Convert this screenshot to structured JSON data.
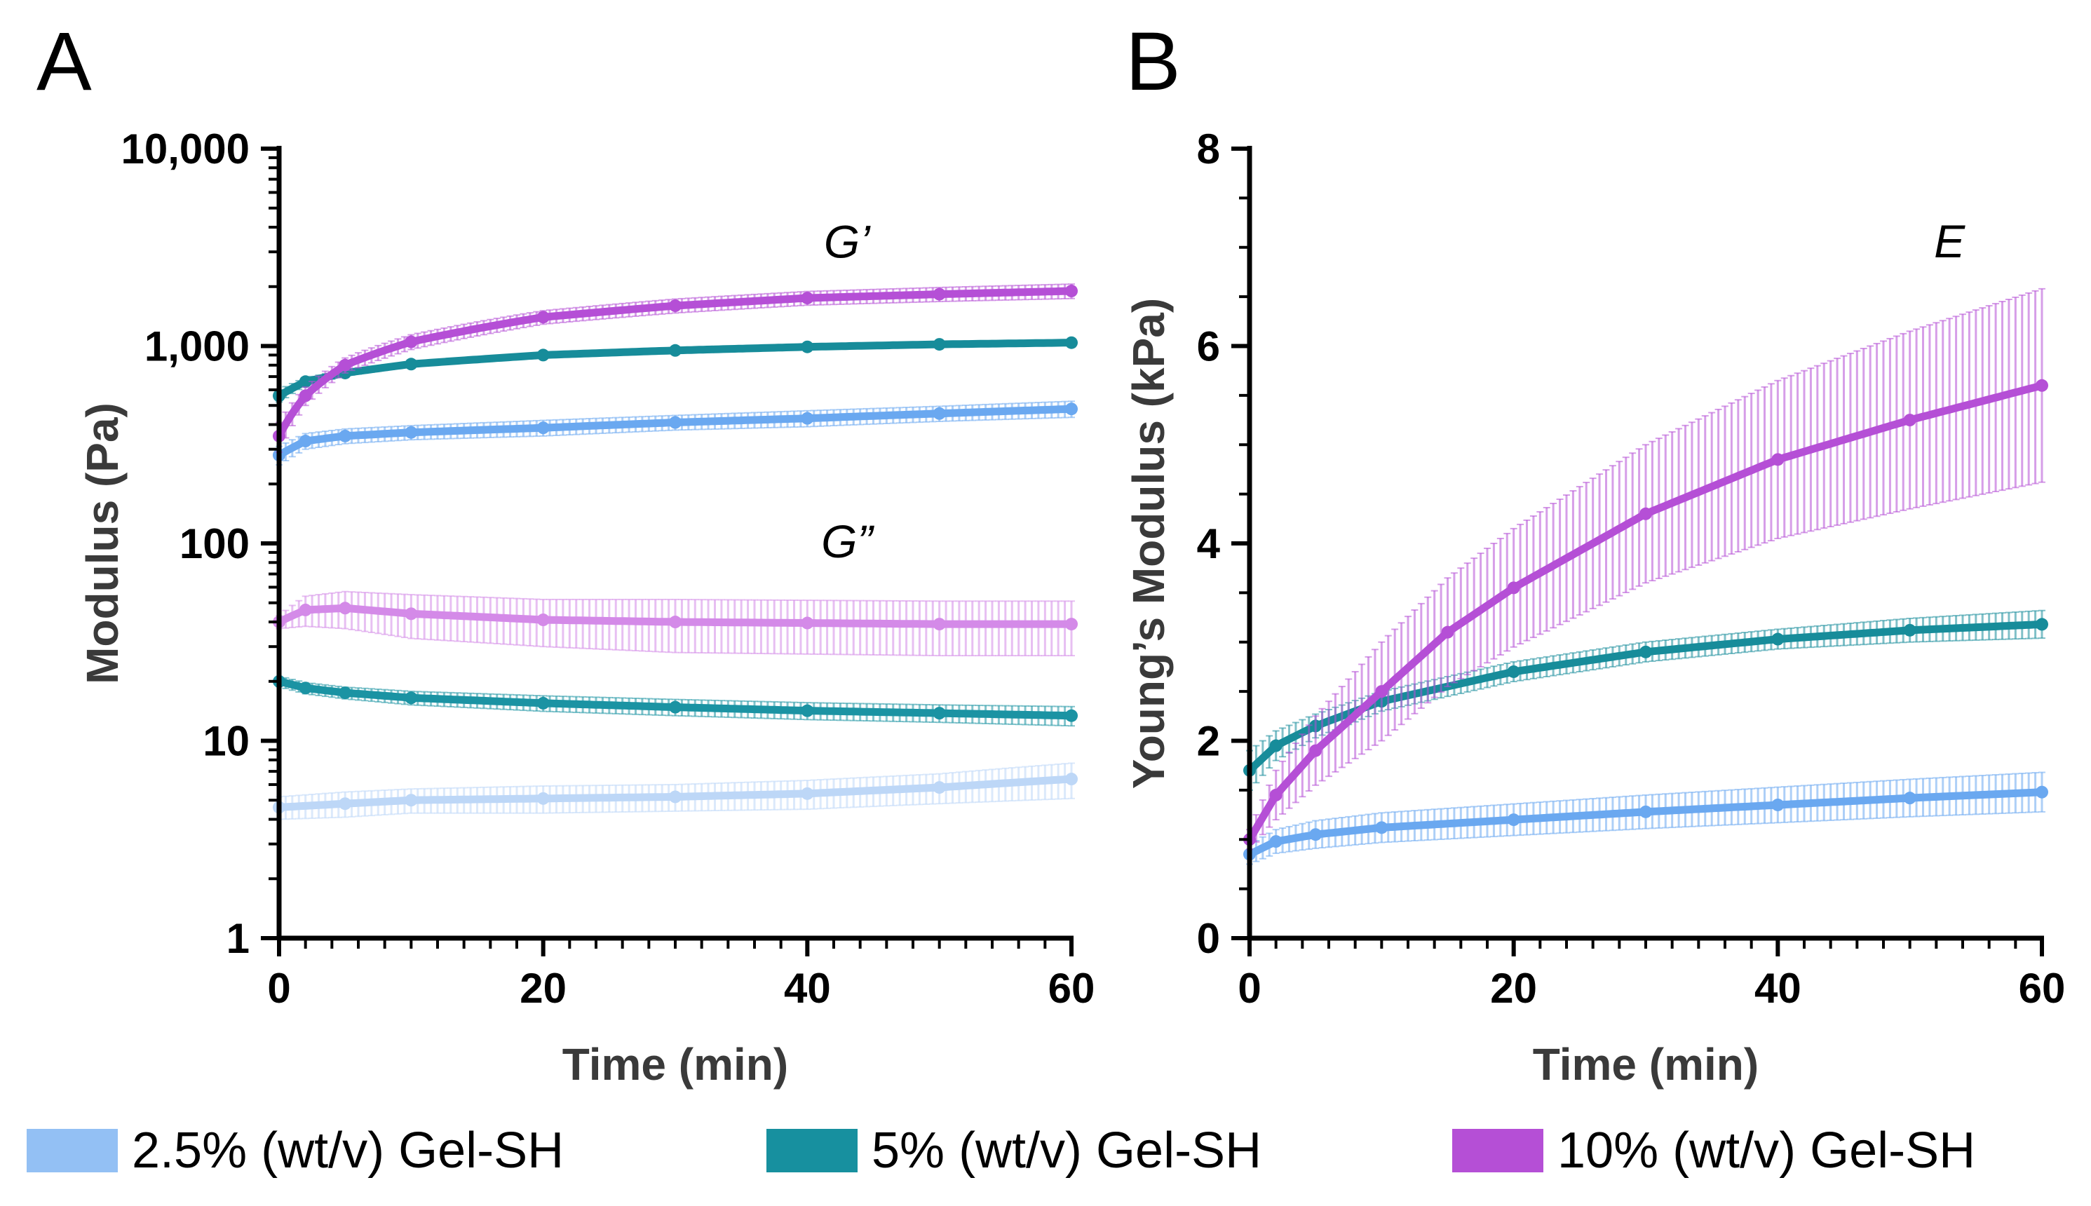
{
  "chart_data": [
    {
      "panel": "A",
      "type": "line",
      "ylabel": "Modulus (Pa)",
      "xlabel": "Time (min)",
      "yscale": "log",
      "xlim": [
        0,
        60
      ],
      "ylim": [
        1,
        10000
      ],
      "xticks": [
        0,
        20,
        40,
        60
      ],
      "xtick_labels": [
        "0",
        "20",
        "40",
        "60"
      ],
      "yticks": [
        1,
        10,
        100,
        1000,
        10000
      ],
      "ytick_labels": [
        "1",
        "10",
        "100",
        "1,000",
        "10,000"
      ],
      "annotations": [
        {
          "text": "G’",
          "x": 43,
          "y": 2800
        },
        {
          "text": "G”",
          "x": 43,
          "y": 85
        }
      ],
      "series": [
        {
          "name": "2.5% (wt/v) Gel-SH G'",
          "group": "2.5% (wt/v) Gel-SH",
          "color": "#6aa8f0",
          "x": [
            0,
            2,
            5,
            10,
            20,
            30,
            40,
            50,
            60
          ],
          "y": [
            280,
            330,
            350,
            365,
            385,
            410,
            430,
            455,
            480
          ],
          "err": [
            30,
            30,
            30,
            30,
            35,
            35,
            40,
            40,
            45
          ]
        },
        {
          "name": "5% (wt/v) Gel-SH G'",
          "group": "5% (wt/v) Gel-SH",
          "color": "#178c9a",
          "x": [
            0,
            2,
            5,
            10,
            20,
            30,
            40,
            50,
            60
          ],
          "y": [
            560,
            660,
            730,
            810,
            900,
            950,
            990,
            1020,
            1040
          ],
          "err": [
            40,
            30,
            25,
            25,
            25,
            25,
            25,
            25,
            25
          ]
        },
        {
          "name": "10% (wt/v) Gel-SH G'",
          "group": "10% (wt/v) Gel-SH",
          "color": "#b54fd6",
          "x": [
            0,
            2,
            5,
            10,
            20,
            30,
            40,
            50,
            60
          ],
          "y": [
            350,
            560,
            800,
            1050,
            1400,
            1600,
            1750,
            1830,
            1900
          ],
          "err": [
            60,
            60,
            70,
            90,
            110,
            130,
            140,
            150,
            160
          ]
        },
        {
          "name": "2.5% (wt/v) Gel-SH G\"",
          "group": "2.5% (wt/v) Gel-SH",
          "color": "#bdd7f7",
          "x": [
            0,
            5,
            10,
            20,
            30,
            40,
            50,
            60
          ],
          "y": [
            4.6,
            4.8,
            5.0,
            5.1,
            5.2,
            5.4,
            5.8,
            6.4
          ],
          "err": [
            0.6,
            0.7,
            0.7,
            0.8,
            0.8,
            0.9,
            1.0,
            1.3
          ]
        },
        {
          "name": "5% (wt/v) Gel-SH G\"",
          "group": "5% (wt/v) Gel-SH",
          "color": "#1b93a3",
          "x": [
            0,
            2,
            5,
            10,
            20,
            30,
            40,
            50,
            60
          ],
          "y": [
            20,
            18.5,
            17.5,
            16.5,
            15.5,
            14.8,
            14.2,
            13.8,
            13.4
          ],
          "err": [
            1.2,
            1.2,
            1.2,
            1.3,
            1.4,
            1.4,
            1.4,
            1.4,
            1.5
          ]
        },
        {
          "name": "10% (wt/v) Gel-SH G\"",
          "group": "10% (wt/v) Gel-SH",
          "color": "#d48ae8",
          "x": [
            0,
            2,
            5,
            10,
            20,
            30,
            40,
            50,
            60
          ],
          "y": [
            40,
            46,
            47,
            44,
            41,
            40,
            39.5,
            39,
            39
          ],
          "err": [
            3,
            8,
            10,
            11,
            11,
            12,
            12,
            12,
            12
          ]
        }
      ]
    },
    {
      "panel": "B",
      "type": "line",
      "ylabel": "Young’s Modulus (kPa)",
      "xlabel": "Time (min)",
      "yscale": "linear",
      "xlim": [
        0,
        60
      ],
      "ylim": [
        0,
        8
      ],
      "xticks": [
        0,
        20,
        40,
        60
      ],
      "xtick_labels": [
        "0",
        "20",
        "40",
        "60"
      ],
      "yticks": [
        0,
        2,
        4,
        6,
        8
      ],
      "ytick_labels": [
        "0",
        "2",
        "4",
        "6",
        "8"
      ],
      "annotations": [
        {
          "text": "E",
          "x": 53,
          "y": 6.9
        }
      ],
      "series": [
        {
          "name": "2.5% (wt/v) Gel-SH E",
          "group": "2.5% (wt/v) Gel-SH",
          "color": "#6aa8f0",
          "x": [
            0,
            2,
            5,
            10,
            20,
            30,
            40,
            50,
            60
          ],
          "y": [
            0.85,
            0.98,
            1.05,
            1.12,
            1.2,
            1.28,
            1.35,
            1.42,
            1.48
          ],
          "err": [
            0.1,
            0.12,
            0.14,
            0.15,
            0.16,
            0.17,
            0.18,
            0.19,
            0.2
          ]
        },
        {
          "name": "5% (wt/v) Gel-SH E",
          "group": "5% (wt/v) Gel-SH",
          "color": "#178c9a",
          "x": [
            0,
            2,
            5,
            10,
            20,
            30,
            40,
            50,
            60
          ],
          "y": [
            1.7,
            1.95,
            2.15,
            2.4,
            2.7,
            2.9,
            3.03,
            3.12,
            3.18
          ],
          "err": [
            0.2,
            0.15,
            0.12,
            0.1,
            0.1,
            0.1,
            0.1,
            0.12,
            0.14
          ]
        },
        {
          "name": "10% (wt/v) Gel-SH E",
          "group": "10% (wt/v) Gel-SH",
          "color": "#b54fd6",
          "x": [
            0,
            2,
            5,
            10,
            15,
            20,
            30,
            40,
            50,
            60
          ],
          "y": [
            1.0,
            1.45,
            1.9,
            2.5,
            3.1,
            3.55,
            4.3,
            4.85,
            5.25,
            5.6
          ],
          "err": [
            0.1,
            0.25,
            0.35,
            0.5,
            0.55,
            0.6,
            0.7,
            0.8,
            0.9,
            0.98
          ]
        }
      ]
    }
  ],
  "panels": {
    "a_letter": "A",
    "b_letter": "B"
  },
  "legend": [
    {
      "label": "2.5% (wt/v) Gel-SH",
      "color": "#93c0f4"
    },
    {
      "label": "5% (wt/v) Gel-SH",
      "color": "#17909f"
    },
    {
      "label": "10% (wt/v) Gel-SH",
      "color": "#b54fd6"
    }
  ]
}
